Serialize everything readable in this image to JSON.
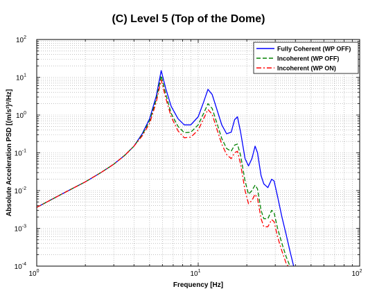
{
  "chart_data": {
    "type": "line",
    "title": "(C) Level 5 (Top of the Dome)",
    "xlabel": "Frequency [Hz]",
    "ylabel": "Absolute Acceleration PSD [(m/s²)²/Hz]",
    "xscale": "log",
    "yscale": "log",
    "xlim": [
      1,
      100
    ],
    "ylim": [
      0.0001,
      100
    ],
    "x_ticks": [
      {
        "value": 1,
        "base": "10",
        "exp": "0"
      },
      {
        "value": 10,
        "base": "10",
        "exp": "1"
      },
      {
        "value": 100,
        "base": "10",
        "exp": "2"
      }
    ],
    "y_ticks": [
      {
        "value": 0.0001,
        "base": "10",
        "exp": "-4"
      },
      {
        "value": 0.001,
        "base": "10",
        "exp": "-3"
      },
      {
        "value": 0.01,
        "base": "10",
        "exp": "-2"
      },
      {
        "value": 0.1,
        "base": "10",
        "exp": "-1"
      },
      {
        "value": 1,
        "base": "10",
        "exp": "0"
      },
      {
        "value": 10,
        "base": "10",
        "exp": "1"
      },
      {
        "value": 100,
        "base": "10",
        "exp": "2"
      }
    ],
    "grid": true,
    "legend_position": "top-right",
    "series": [
      {
        "name": "Fully Coherent (WP OFF)",
        "color": "#0000ff",
        "dash": "solid",
        "points": [
          [
            1,
            0.0036
          ],
          [
            1.5,
            0.009
          ],
          [
            2,
            0.017
          ],
          [
            2.5,
            0.03
          ],
          [
            3,
            0.05
          ],
          [
            3.5,
            0.085
          ],
          [
            4,
            0.15
          ],
          [
            4.5,
            0.32
          ],
          [
            5,
            0.8
          ],
          [
            5.5,
            3.2
          ],
          [
            5.9,
            15
          ],
          [
            6.3,
            5
          ],
          [
            6.8,
            1.7
          ],
          [
            7.5,
            0.8
          ],
          [
            8.2,
            0.55
          ],
          [
            9,
            0.55
          ],
          [
            10,
            0.9
          ],
          [
            10.8,
            2.2
          ],
          [
            11.5,
            4.8
          ],
          [
            12.2,
            3.5
          ],
          [
            13,
            1.5
          ],
          [
            14,
            0.55
          ],
          [
            15,
            0.32
          ],
          [
            16,
            0.35
          ],
          [
            16.8,
            0.75
          ],
          [
            17.5,
            0.9
          ],
          [
            18.3,
            0.35
          ],
          [
            19.5,
            0.07
          ],
          [
            20.5,
            0.045
          ],
          [
            21.5,
            0.07
          ],
          [
            22.5,
            0.15
          ],
          [
            23.3,
            0.1
          ],
          [
            24.5,
            0.025
          ],
          [
            25.5,
            0.015
          ],
          [
            27,
            0.012
          ],
          [
            28.5,
            0.02
          ],
          [
            29.5,
            0.018
          ],
          [
            31,
            0.007
          ],
          [
            33,
            0.002
          ],
          [
            35,
            0.0007
          ],
          [
            37,
            0.00025
          ],
          [
            39,
            0.0001
          ]
        ]
      },
      {
        "name": "Incoherent (WP OFF)",
        "color": "#008000",
        "dash": "dashed",
        "points": [
          [
            1,
            0.0036
          ],
          [
            1.5,
            0.009
          ],
          [
            2,
            0.017
          ],
          [
            2.5,
            0.03
          ],
          [
            3,
            0.05
          ],
          [
            3.5,
            0.085
          ],
          [
            4,
            0.15
          ],
          [
            4.5,
            0.3
          ],
          [
            5,
            0.7
          ],
          [
            5.5,
            2.6
          ],
          [
            5.9,
            11
          ],
          [
            6.3,
            3.6
          ],
          [
            6.8,
            1.1
          ],
          [
            7.5,
            0.5
          ],
          [
            8.2,
            0.34
          ],
          [
            9,
            0.35
          ],
          [
            10,
            0.55
          ],
          [
            10.8,
            1.1
          ],
          [
            11.5,
            2
          ],
          [
            12.2,
            1.5
          ],
          [
            13,
            0.65
          ],
          [
            14,
            0.24
          ],
          [
            15,
            0.13
          ],
          [
            16,
            0.11
          ],
          [
            16.8,
            0.16
          ],
          [
            17.5,
            0.17
          ],
          [
            18.3,
            0.085
          ],
          [
            19.5,
            0.018
          ],
          [
            20.5,
            0.008
          ],
          [
            21.5,
            0.01
          ],
          [
            22.5,
            0.014
          ],
          [
            23.3,
            0.011
          ],
          [
            24.5,
            0.003
          ],
          [
            25.5,
            0.0018
          ],
          [
            27,
            0.0018
          ],
          [
            28.5,
            0.003
          ],
          [
            29.5,
            0.0026
          ],
          [
            31,
            0.001
          ],
          [
            33,
            0.0004
          ],
          [
            35,
            0.00018
          ],
          [
            37,
            0.0001
          ]
        ]
      },
      {
        "name": "Incoherent (WP ON)",
        "color": "#ff0000",
        "dash": "dashdot",
        "points": [
          [
            1,
            0.0036
          ],
          [
            1.5,
            0.009
          ],
          [
            2,
            0.017
          ],
          [
            2.5,
            0.03
          ],
          [
            3,
            0.05
          ],
          [
            3.5,
            0.085
          ],
          [
            4,
            0.15
          ],
          [
            4.5,
            0.28
          ],
          [
            5,
            0.6
          ],
          [
            5.5,
            2.2
          ],
          [
            5.9,
            8.5
          ],
          [
            6.3,
            2.8
          ],
          [
            6.8,
            0.9
          ],
          [
            7.5,
            0.38
          ],
          [
            8.2,
            0.25
          ],
          [
            9,
            0.26
          ],
          [
            10,
            0.4
          ],
          [
            10.8,
            0.8
          ],
          [
            11.5,
            1.4
          ],
          [
            12.2,
            1.05
          ],
          [
            13,
            0.45
          ],
          [
            14,
            0.17
          ],
          [
            15,
            0.09
          ],
          [
            16,
            0.07
          ],
          [
            16.8,
            0.1
          ],
          [
            17.5,
            0.11
          ],
          [
            18.3,
            0.05
          ],
          [
            19.5,
            0.01
          ],
          [
            20.5,
            0.0045
          ],
          [
            21.5,
            0.0055
          ],
          [
            22.5,
            0.008
          ],
          [
            23.3,
            0.0062
          ],
          [
            24.5,
            0.0018
          ],
          [
            25.5,
            0.0011
          ],
          [
            27,
            0.0011
          ],
          [
            28.5,
            0.0017
          ],
          [
            29.5,
            0.0015
          ],
          [
            31,
            0.0006
          ],
          [
            33,
            0.00025
          ],
          [
            35,
            0.00012
          ],
          [
            36,
            0.0001
          ]
        ]
      }
    ]
  }
}
